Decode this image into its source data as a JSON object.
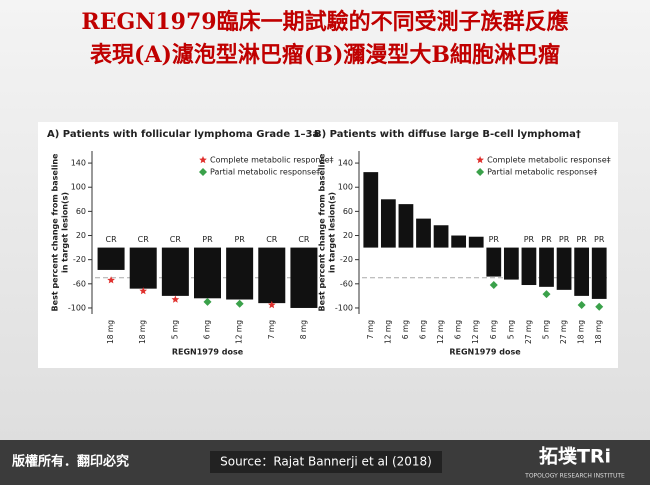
{
  "header": {
    "title_lines": [
      "REGN1979臨床一期試驗的不同受測子族群反應",
      "表現(A)濾泡型淋巴瘤(B)瀰漫型大B細胞淋巴瘤"
    ]
  },
  "chart_data": [
    {
      "type": "bar",
      "title": "A) Patients with follicular lymphoma Grade 1–3a",
      "y_label": [
        "Best percent change from baseline",
        "in target lesion(s)"
      ],
      "x_label": "REGN1979 dose",
      "categories": [
        "18 mg",
        "18 mg",
        "5 mg",
        "6 mg",
        "12 mg",
        "7 mg",
        "8 mg"
      ],
      "values": [
        -37,
        -68,
        -80,
        -84,
        -86,
        -92,
        -100
      ],
      "color": "#111111",
      "response": [
        "CR",
        "CR",
        "CR",
        "PR",
        "PR",
        "CR",
        "CR"
      ],
      "markers": [
        {
          "name": "Complete metabolic response‡",
          "color": "#e0312e",
          "shape": "star",
          "values": [
            -54,
            -72,
            -86,
            null,
            null,
            -95,
            null
          ]
        },
        {
          "name": "Partial metabolic response‡",
          "color": "#3aa14a",
          "shape": "diamond",
          "values": [
            null,
            null,
            null,
            -90,
            -93,
            null,
            null
          ]
        }
      ],
      "reference_line": -50,
      "ylim": [
        -110,
        160
      ],
      "yticks": [
        -100,
        -60,
        -20,
        20,
        60,
        100,
        140
      ]
    },
    {
      "type": "bar",
      "title": "B) Patients with diffuse large B-cell lymphoma†",
      "y_label": [
        "Best percent change from baseline",
        "in target lesion(s)"
      ],
      "x_label": "REGN1979 dose",
      "categories": [
        "7 mg",
        "12 mg",
        "6 mg",
        "6 mg",
        "12 mg",
        "6 mg",
        "12 mg",
        "6 mg",
        "5 mg",
        "27 mg",
        "5 mg",
        "27 mg",
        "18 mg",
        "18 mg"
      ],
      "values": [
        125,
        80,
        72,
        48,
        37,
        20,
        18,
        -48,
        -53,
        -62,
        -65,
        -70,
        -80,
        -85
      ],
      "color": "#111111",
      "response": [
        null,
        null,
        null,
        null,
        null,
        null,
        null,
        "PR",
        null,
        "PR",
        "PR",
        "PR",
        "PR",
        "PR"
      ],
      "markers": [
        {
          "name": "Complete metabolic response‡",
          "color": "#e0312e",
          "shape": "star",
          "values": [
            null,
            null,
            null,
            null,
            null,
            null,
            null,
            null,
            null,
            null,
            null,
            null,
            null,
            null
          ]
        },
        {
          "name": "Partial metabolic response‡",
          "color": "#3aa14a",
          "shape": "diamond",
          "values": [
            null,
            null,
            null,
            null,
            null,
            null,
            null,
            -62,
            null,
            null,
            -77,
            null,
            -95,
            -98
          ]
        }
      ],
      "reference_line": -50,
      "ylim": [
        -110,
        160
      ],
      "yticks": [
        -100,
        -60,
        -20,
        20,
        60,
        100,
        140
      ]
    }
  ],
  "footer": {
    "copyright": "版權所有．翻印必究",
    "source": "Source：Rajat Bannerji et al (2018)",
    "logo": "拓墣TRi",
    "logo_sub": "TOPOLOGY RESEARCH INSTITUTE"
  }
}
